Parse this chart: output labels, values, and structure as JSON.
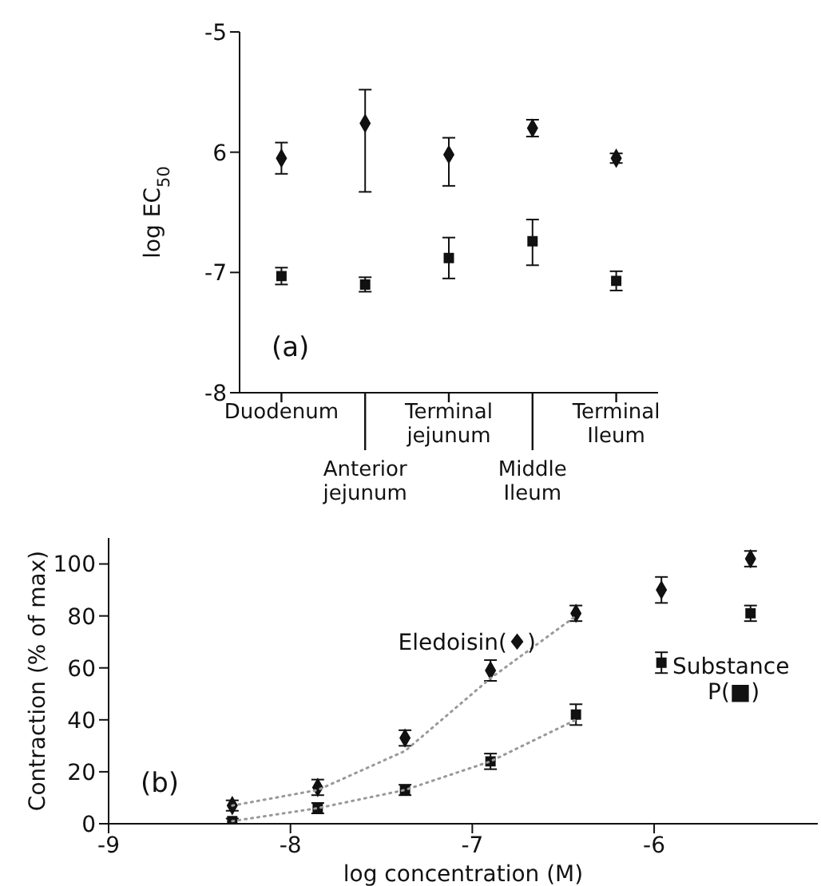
{
  "chart_data": [
    {
      "type": "scatter",
      "ylabel": "log EC$_{50}$",
      "categories": [
        "Duodenum",
        "Anterior jejunum",
        "Terminal jejunum",
        "Middle Ileum",
        "Terminal Ileum"
      ],
      "ylim": [
        -8,
        -5
      ],
      "yticks": [
        -8,
        -7,
        {
          "value": -6,
          "label": "6"
        },
        -5
      ],
      "annotations": [
        "(a)"
      ],
      "series": [
        {
          "color": "#111111",
          "marker": "diamond",
          "values": [
            -6.05,
            -5.76,
            -6.02,
            -5.8,
            -6.05
          ],
          "errors": [
            0.13,
            [
              -6.33,
              -5.48
            ],
            [
              -6.28,
              -5.88
            ],
            0.07,
            0.04
          ]
        },
        {
          "color": "#111111",
          "marker": "square",
          "values": [
            -7.03,
            -7.1,
            -6.88,
            -6.74,
            -7.07
          ],
          "errors": [
            0.07,
            0.06,
            0.17,
            [
              -6.94,
              -6.56
            ],
            0.08
          ]
        }
      ]
    },
    {
      "type": "scatter",
      "xlabel": "log concentration (M)",
      "ylabel": "Contraction (% of max)",
      "xlim": [
        -9,
        -5.1
      ],
      "xticks": [
        -9,
        -8,
        -7,
        -6
      ],
      "ylim": [
        0,
        110
      ],
      "yticks": [
        0,
        20,
        40,
        60,
        80,
        100
      ],
      "annotations": [
        "(b)"
      ],
      "series": [
        {
          "name": "Eledoisin(♦)",
          "color": "#111111",
          "marker": "diamond",
          "x": [
            -8.32,
            -7.85,
            -7.37,
            -6.9,
            -6.43,
            -5.96,
            -5.47
          ],
          "values": [
            7,
            14,
            33,
            59,
            81,
            90,
            102
          ],
          "errors": [
            2,
            3,
            3,
            4,
            3,
            5,
            3
          ]
        },
        {
          "name": "Substance P(■)",
          "color": "#111111",
          "marker": "square",
          "x": [
            -8.32,
            -7.85,
            -7.37,
            -6.9,
            -6.43,
            -5.96,
            -5.47
          ],
          "values": [
            1,
            6,
            13,
            24,
            42,
            62,
            81
          ],
          "errors": [
            1,
            2,
            2,
            3,
            4,
            4,
            3
          ]
        },
        {
          "type": "line",
          "color": "#999999",
          "marker": "none",
          "line_style": "dotted",
          "x": [
            -8.32,
            -7.85,
            -7.37,
            -6.9,
            -6.43
          ],
          "values": [
            7,
            13,
            28,
            56,
            80
          ]
        },
        {
          "type": "line",
          "color": "#999999",
          "marker": "none",
          "line_style": "dotted",
          "x": [
            -8.32,
            -7.85,
            -7.37,
            -6.9,
            -6.43
          ],
          "values": [
            1,
            6,
            13,
            24,
            40
          ]
        }
      ]
    }
  ]
}
